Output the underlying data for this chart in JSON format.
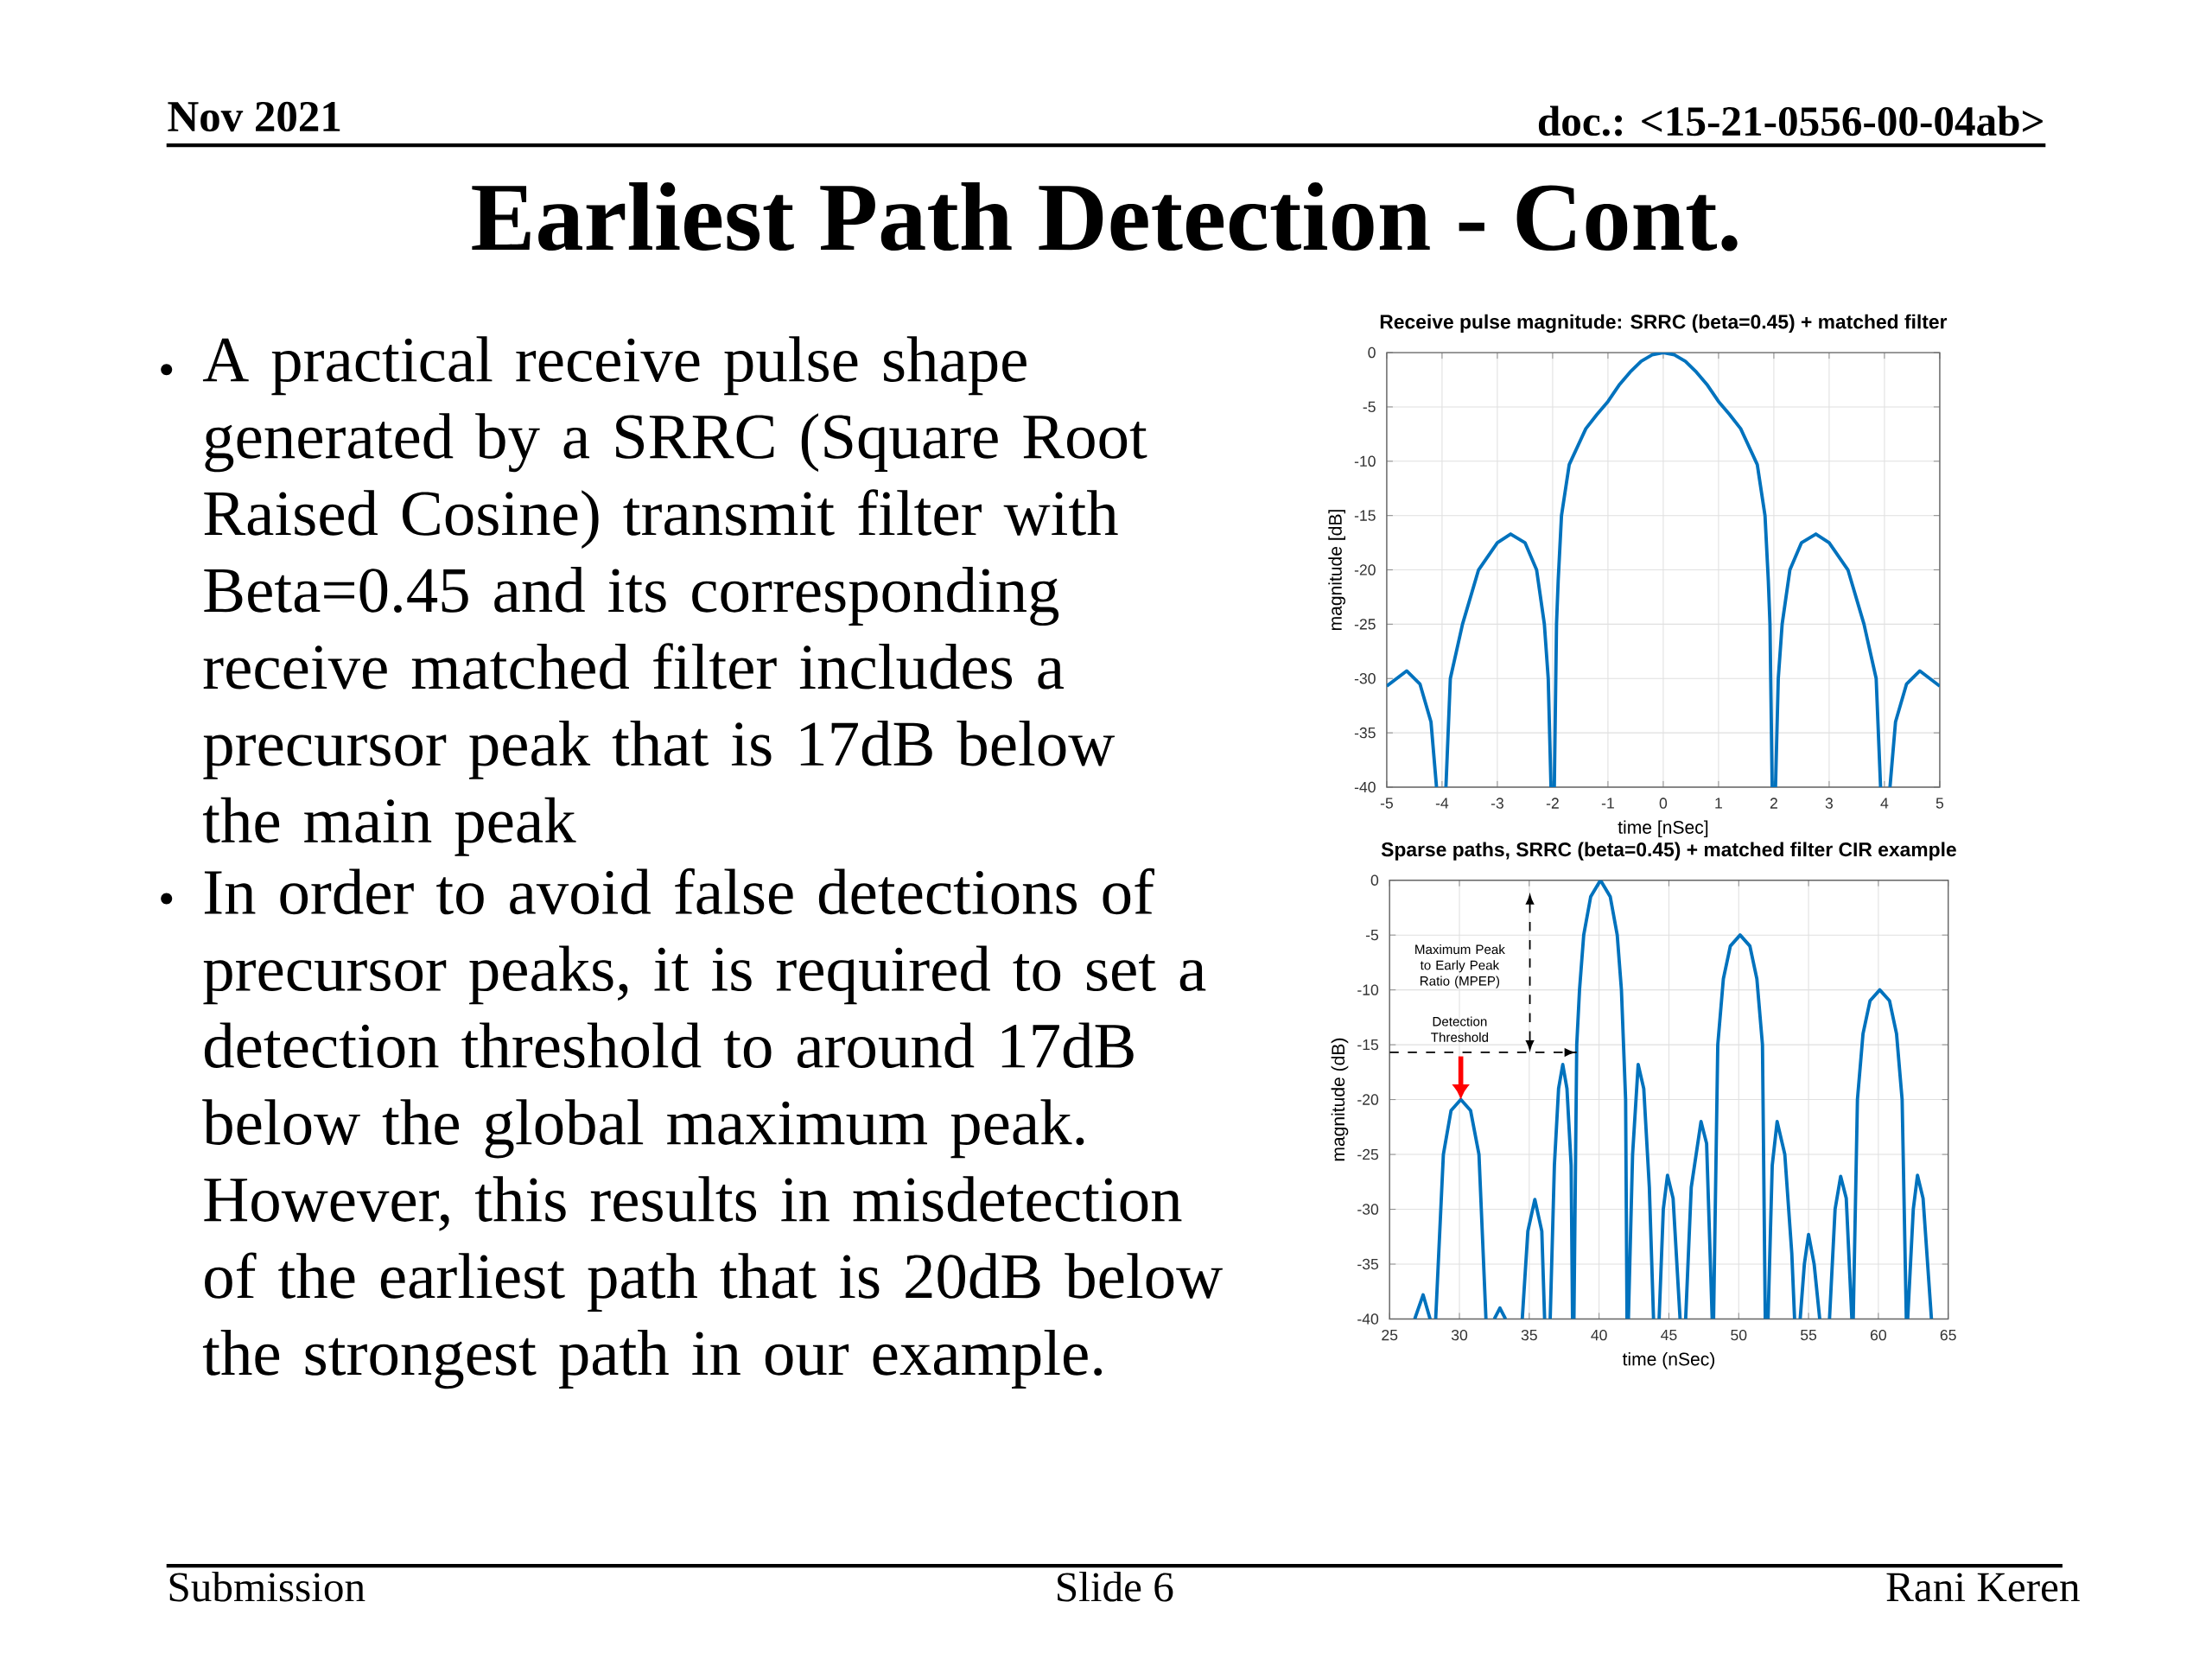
{
  "chart_data": [
    {
      "type": "other",
      "title": "Earliest Path Detection - Cont.",
      "annotations": [
        "Nov 2021",
        "doc.: <15-21-0556-00-04ab>",
        "A practical receive pulse shape generated by a SRRC (Square Root Raised Cosine) transmit filter with Beta=0.45 and its corresponding receive matched filter includes a precursor peak that is 17dB below the main peak",
        "In order to avoid false detections of precursor peaks, it is required to set a detection threshold to around 17dB below the global maximum peak. However, this results in misdetection of the earliest path that is 20dB below the strongest path in our example.",
        "Submission",
        "Slide 6",
        "Rani Keren"
      ]
    },
    {
      "type": "line",
      "title": "Receive pulse magnitude: SRRC (beta=0.45) + matched filter",
      "xlabel": "time [nSec]",
      "ylabel": "magnitude [dB]",
      "color": "#0072bd",
      "grid": true,
      "xlim": [
        -5,
        5
      ],
      "ylim": [
        -40,
        0
      ],
      "xticks": [
        -5,
        -4,
        -3,
        -2,
        -1,
        0,
        1,
        2,
        3,
        4,
        5
      ],
      "yticks": [
        -40,
        -35,
        -30,
        -25,
        -20,
        -15,
        -10,
        -5,
        0
      ],
      "x": [
        -5,
        -4.64,
        -4.4,
        -4.2,
        -4.1,
        -4.05,
        -3.93,
        -3.85,
        -3.63,
        -3.34,
        -3.0,
        -2.76,
        -2.5,
        -2.29,
        -2.15,
        -2.08,
        -2.03,
        -2.0,
        -1.97,
        -1.93,
        -1.9,
        -1.84,
        -1.7,
        -1.4,
        -1.2,
        -1,
        -0.8,
        -0.6,
        -0.4,
        -0.2,
        0,
        0.2,
        0.4,
        0.6,
        0.8,
        1,
        1.2,
        1.4,
        1.7,
        1.84,
        1.9,
        1.93,
        1.97,
        2.0,
        2.03,
        2.08,
        2.15,
        2.29,
        2.5,
        2.76,
        3.0,
        3.34,
        3.63,
        3.85,
        3.93,
        4.05,
        4.1,
        4.2,
        4.4,
        4.64,
        5
      ],
      "values": [
        -30.7,
        -29.3,
        -30.5,
        -34,
        -40,
        null,
        -40,
        -30,
        -25,
        -20,
        -17.5,
        -16.7,
        -17.5,
        -20,
        -25,
        -30,
        -40,
        null,
        -40,
        -25,
        -21,
        -15,
        -10.3,
        -7,
        -5.7,
        -4.5,
        -3,
        -1.8,
        -0.8,
        -0.2,
        0,
        -0.2,
        -0.8,
        -1.8,
        -3,
        -4.5,
        -5.7,
        -7,
        -10.3,
        -15,
        -21,
        -25,
        -40,
        null,
        -40,
        -30,
        -25,
        -20,
        -17.5,
        -16.7,
        -17.5,
        -20,
        -25,
        -30,
        -40,
        null,
        -40,
        -34,
        -30.5,
        -29.3,
        -30.7
      ]
    },
    {
      "type": "line",
      "title": "Sparse paths, SRRC (beta=0.45) + matched filter CIR example",
      "xlabel": "time (nSec)",
      "ylabel": "magnitude (dB)",
      "color": "#0072bd",
      "grid": true,
      "xlim": [
        25,
        65
      ],
      "ylim": [
        -40,
        0
      ],
      "xticks": [
        25,
        30,
        35,
        40,
        45,
        50,
        55,
        60,
        65
      ],
      "yticks": [
        -40,
        -35,
        -30,
        -25,
        -20,
        -15,
        -10,
        -5,
        0
      ],
      "annotations": [
        "Maximum Peak to Early Peak Ratio (MPEP)"
      ],
      "ref_lines": [
        {
          "axis": "y",
          "value": -15.7,
          "label": "Detection Threshold",
          "line_style": "dashed",
          "color": "#000000"
        }
      ],
      "x": [
        26.8,
        27.4,
        27.9,
        28.1,
        28.3,
        28.85,
        29.4,
        30.1,
        30.8,
        31.4,
        31.9,
        32.1,
        32.5,
        32.9,
        33.3,
        33.9,
        34.5,
        34.9,
        35.4,
        35.9,
        36.1,
        36.3,
        36.5,
        36.8,
        37.1,
        37.4,
        37.7,
        38.0,
        38.1,
        38.15,
        38.2,
        38.4,
        38.6,
        38.9,
        39.4,
        40.1,
        40.8,
        41.3,
        41.6,
        41.9,
        42.0,
        42.05,
        42.1,
        42.4,
        42.8,
        43.2,
        43.6,
        43.9,
        44.1,
        44.3,
        44.6,
        44.9,
        45.3,
        45.8,
        46.0,
        46.2,
        46.6,
        47.3,
        47.7,
        48.1,
        48.15,
        48.2,
        48.5,
        48.9,
        49.4,
        50.1,
        50.8,
        51.3,
        51.7,
        51.9,
        52.0,
        52.1,
        52.4,
        52.75,
        53.3,
        53.8,
        54.0,
        54.2,
        54.4,
        54.7,
        55.0,
        55.4,
        55.8,
        56.2,
        56.5,
        56.9,
        57.3,
        57.7,
        58.1,
        58.15,
        58.2,
        58.5,
        58.9,
        59.4,
        60.1,
        60.8,
        61.3,
        61.7,
        62.0,
        62.05,
        62.1,
        62.5,
        62.8,
        63.2,
        63.8
      ],
      "values": [
        -40,
        -37.8,
        -40,
        null,
        -40,
        -25,
        -21,
        -20,
        -21,
        -25,
        -40,
        null,
        -40,
        -39,
        -40,
        null,
        -40,
        -32,
        -29.1,
        -32,
        -40,
        null,
        -40,
        -26,
        -19,
        -16.8,
        -19,
        -26,
        -40,
        null,
        -40,
        -15,
        -10,
        -5,
        -1.5,
        0,
        -1.5,
        -5,
        -10,
        -20,
        -40,
        null,
        -40,
        -25,
        -16.8,
        -19,
        -28,
        -40,
        null,
        -40,
        -30,
        -26.9,
        -29,
        -40,
        null,
        -40,
        -28,
        -22,
        -24,
        -40,
        null,
        -40,
        -15,
        -9,
        -6,
        -5,
        -6,
        -9,
        -15,
        -40,
        null,
        -40,
        -26,
        -22,
        -25,
        -34,
        -40,
        null,
        -40,
        -35,
        -32.3,
        -35,
        -40,
        null,
        -40,
        -30,
        -27,
        -29,
        -40,
        null,
        -40,
        -20,
        -14,
        -11,
        -10,
        -11,
        -14,
        -20,
        -40,
        null,
        -40,
        -30,
        -26.9,
        -29,
        -40
      ]
    }
  ]
}
